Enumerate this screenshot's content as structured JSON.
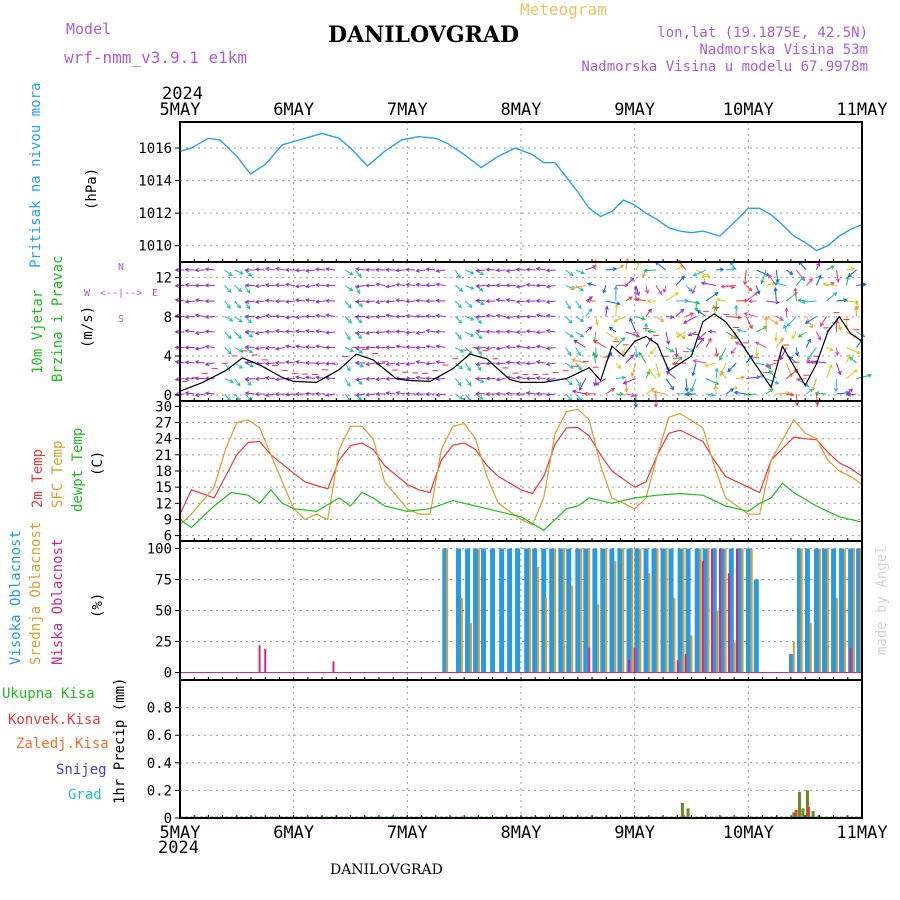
{
  "header": {
    "model_label": "Model",
    "model_name": "wrf-nmm_v3.9.1 e1km",
    "station": "DANILOVGRAD",
    "product": "Meteogram",
    "lonlat": "lon,lat (19.1875E, 42.5N)",
    "elevation": "Nadmorska Visina 53m",
    "model_elevation": "Nadmorska Visina u modelu 67.9978m",
    "credit": "made by Angel",
    "footer_station": "DANILOVGRAD"
  },
  "time_axis": {
    "year": "2024",
    "ticks": [
      "5MAY",
      "6MAY",
      "7MAY",
      "8MAY",
      "9MAY",
      "10MAY",
      "11MAY"
    ]
  },
  "colors": {
    "pressure": "#2aa0e8",
    "wind_speed_label": "#22bb22",
    "temp2m": "#e83a3a",
    "sfc": "#d8a030",
    "dewpt": "#22bb22",
    "high_cloud": "#2a9ae0",
    "mid_cloud": "#d8a030",
    "low_cloud": "#d02888",
    "total_precip": "#22bb22",
    "conv_precip": "#e83a3a",
    "frozen": "#f07030",
    "snow": "#4040e0",
    "hail": "#20c0c0",
    "axes_purple": "#b05ad8"
  },
  "panels": {
    "pressure": {
      "labels": [
        "Pritisak na nivou mora",
        "(hPa)"
      ],
      "yticks": [
        "1016",
        "1014",
        "1012",
        "1010"
      ]
    },
    "wind": {
      "labels": [
        "10m Vjetar",
        "Brzina i Pravac",
        "(m/s)"
      ],
      "yticks": [
        "12",
        "8",
        "4",
        "0"
      ],
      "compass": [
        "W",
        "<--|-->",
        "E",
        "N",
        "S"
      ]
    },
    "temperature": {
      "labels": [
        "2m Temp",
        "SFC Temp",
        "dewpt Temp",
        "(C)"
      ],
      "yticks": [
        "30",
        "27",
        "24",
        "21",
        "18",
        "15",
        "12",
        "9",
        "6"
      ]
    },
    "cloud": {
      "labels": [
        "Visoka Oblacnost",
        "Srednja Oblacnost",
        "Niska Oblacnost",
        "(%)"
      ],
      "yticks": [
        "100",
        "75",
        "50",
        "25",
        "0"
      ]
    },
    "precip": {
      "legend": [
        "Ukupna Kisa",
        "Konvek.Kisa",
        "Zaledj.Kisa",
        "Snijeg",
        "Grad"
      ],
      "ylabel": "1hr Precip (mm)",
      "yticks": [
        "0.8",
        "0.6",
        "0.4",
        "0.2",
        "0"
      ]
    }
  },
  "chart_data": [
    {
      "type": "line",
      "title": "",
      "ylabel": "(hPa)",
      "series": [
        {
          "name": "Pritisak na nivou mora",
          "x": [
            0,
            0.1,
            0.25,
            0.35,
            0.5,
            0.62,
            0.75,
            0.9,
            1.0,
            1.15,
            1.25,
            1.4,
            1.5,
            1.65,
            1.8,
            1.95,
            2.1,
            2.25,
            2.35,
            2.5,
            2.65,
            2.8,
            2.95,
            3.1,
            3.2,
            3.3,
            3.4,
            3.5,
            3.6,
            3.7,
            3.8,
            3.9,
            4.0,
            4.1,
            4.2,
            4.3,
            4.4,
            4.5,
            4.6,
            4.75,
            4.9,
            5.0,
            5.1,
            5.2,
            5.3,
            5.4,
            5.5,
            5.6,
            5.7,
            5.8,
            5.9,
            6.0
          ],
          "y": [
            1015.8,
            1016,
            1016.6,
            1016.5,
            1015.5,
            1014.4,
            1015,
            1016.2,
            1016.4,
            1016.7,
            1016.9,
            1016.6,
            1016,
            1014.9,
            1015.8,
            1016.5,
            1016.7,
            1016.6,
            1016.3,
            1015.6,
            1014.8,
            1015.5,
            1016,
            1015.6,
            1015.1,
            1015.1,
            1014.2,
            1013.3,
            1012.3,
            1011.8,
            1012.1,
            1012.8,
            1012.5,
            1012,
            1011.6,
            1011.1,
            1010.9,
            1010.8,
            1010.9,
            1010.6,
            1011.6,
            1012.3,
            1012.3,
            1011.9,
            1011.3,
            1010.6,
            1010.2,
            1009.7,
            1010,
            1010.6,
            1011,
            1011.3
          ]
        }
      ],
      "ylim": [
        1009,
        1017.6
      ],
      "xlim": [
        0,
        6
      ],
      "grid": true
    },
    {
      "type": "line",
      "title": "",
      "ylabel": "(m/s)",
      "series": [
        {
          "name": "10m Vjetar",
          "x": [
            0,
            0.2,
            0.4,
            0.55,
            0.7,
            0.9,
            1.0,
            1.2,
            1.4,
            1.55,
            1.7,
            1.9,
            2.0,
            2.2,
            2.4,
            2.55,
            2.7,
            2.9,
            3.0,
            3.2,
            3.4,
            3.6,
            3.7,
            3.8,
            3.9,
            4.0,
            4.1,
            4.2,
            4.3,
            4.5,
            4.6,
            4.7,
            4.8,
            4.9,
            5.0,
            5.1,
            5.2,
            5.3,
            5.4,
            5.5,
            5.6,
            5.7,
            5.8,
            5.9,
            6.0
          ],
          "y": [
            0.4,
            1.3,
            2.5,
            3.8,
            3.1,
            1.8,
            1.4,
            1.3,
            2.6,
            4.2,
            3.6,
            1.7,
            1.5,
            1.4,
            2.7,
            4.2,
            3.7,
            1.6,
            1.3,
            1.3,
            1.7,
            2.8,
            1.5,
            5,
            4,
            5.5,
            6,
            5.2,
            2.5,
            4,
            7.5,
            8.3,
            7.5,
            6,
            4.2,
            2.5,
            0.8,
            5,
            3,
            1,
            3.2,
            6.5,
            8,
            6.3,
            5.5
          ]
        }
      ],
      "ylim": [
        -0.6,
        13.6
      ],
      "xlim": [
        0,
        6
      ],
      "grid": true
    },
    {
      "type": "line",
      "title": "",
      "ylabel": "(C)",
      "series": [
        {
          "name": "2m Temp",
          "x": [
            0,
            0.1,
            0.3,
            0.4,
            0.5,
            0.6,
            0.7,
            0.8,
            1.0,
            1.1,
            1.2,
            1.3,
            1.4,
            1.5,
            1.6,
            1.7,
            1.8,
            2.0,
            2.1,
            2.2,
            2.3,
            2.4,
            2.5,
            2.6,
            2.7,
            2.8,
            3.0,
            3.1,
            3.2,
            3.3,
            3.4,
            3.5,
            3.6,
            3.7,
            3.8,
            4.0,
            4.1,
            4.2,
            4.3,
            4.4,
            4.6,
            4.7,
            4.8,
            5.0,
            5.1,
            5.2,
            5.4,
            5.5,
            5.6,
            5.7,
            5.8,
            5.9,
            6.0
          ],
          "y": [
            10,
            14.5,
            13,
            17,
            21,
            23.3,
            23.5,
            21,
            17.6,
            16,
            15.3,
            14.7,
            20,
            22.7,
            23.2,
            22,
            19,
            15.5,
            14.5,
            14,
            20,
            22.8,
            23.2,
            22,
            19,
            17,
            14.5,
            13.8,
            17,
            23,
            26,
            26.1,
            24.5,
            21,
            18,
            15,
            16,
            21,
            25,
            25.6,
            23.5,
            20,
            17,
            15,
            14,
            20,
            24.3,
            24,
            23.8,
            21.5,
            19.5,
            18.5,
            17
          ]
        },
        {
          "name": "SFC Temp",
          "x": [
            0,
            0.1,
            0.3,
            0.4,
            0.5,
            0.6,
            0.7,
            0.8,
            1.0,
            1.1,
            1.2,
            1.3,
            1.4,
            1.5,
            1.6,
            1.7,
            1.8,
            2.0,
            2.1,
            2.2,
            2.3,
            2.4,
            2.5,
            2.6,
            2.7,
            2.8,
            3.0,
            3.1,
            3.2,
            3.3,
            3.4,
            3.5,
            3.6,
            3.7,
            3.8,
            4.0,
            4.1,
            4.2,
            4.3,
            4.4,
            4.6,
            4.7,
            4.8,
            5.0,
            5.1,
            5.2,
            5.4,
            5.5,
            5.6,
            5.7,
            5.8,
            5.9,
            6.0
          ],
          "y": [
            8,
            10,
            15,
            22,
            27,
            27.5,
            26,
            21,
            11,
            9,
            10,
            9,
            22,
            26.3,
            26.3,
            24,
            16,
            11,
            10,
            10,
            22,
            26.3,
            26.8,
            24,
            17,
            12,
            9,
            8,
            13,
            25,
            29,
            29.5,
            27.5,
            19,
            13,
            11,
            13,
            21,
            28,
            28.7,
            26,
            19,
            13,
            10,
            10,
            20,
            27.5,
            25,
            24,
            20,
            18,
            17,
            15.5
          ]
        },
        {
          "name": "dewpt Temp",
          "x": [
            0,
            0.1,
            0.2,
            0.3,
            0.45,
            0.6,
            0.7,
            0.8,
            0.9,
            1.0,
            1.2,
            1.4,
            1.5,
            1.6,
            1.7,
            1.8,
            2.0,
            2.2,
            2.4,
            2.6,
            2.8,
            3.0,
            3.2,
            3.3,
            3.4,
            3.5,
            3.6,
            3.8,
            4.0,
            4.2,
            4.4,
            4.6,
            4.8,
            5.0,
            5.1,
            5.2,
            5.3,
            5.4,
            5.6,
            5.8,
            6.0
          ],
          "y": [
            9,
            7.5,
            9.5,
            11.5,
            14,
            13.5,
            12,
            14.5,
            12,
            11,
            10.5,
            13,
            11.5,
            14,
            13,
            11.5,
            10.5,
            11,
            12.5,
            11.5,
            10.5,
            9.5,
            7,
            9,
            11,
            11.5,
            13,
            12,
            13,
            13.5,
            13.8,
            13.5,
            11.5,
            10.5,
            12,
            13,
            15.7,
            14,
            11.5,
            9.5,
            8.5
          ]
        }
      ],
      "ylim": [
        5,
        31
      ],
      "xlim": [
        0,
        6
      ],
      "grid": true
    },
    {
      "type": "bar",
      "title": "",
      "ylabel": "(%)",
      "series": [
        {
          "name": "Visoka Oblacnost",
          "x": [
            2.33,
            2.45,
            2.53,
            2.6,
            2.67,
            2.75,
            2.83,
            2.9,
            2.97,
            3.05,
            3.12,
            3.2,
            3.27,
            3.35,
            3.42,
            3.5,
            3.57,
            3.65,
            3.72,
            3.8,
            3.87,
            3.95,
            4.02,
            4.1,
            4.17,
            4.25,
            4.32,
            4.4,
            4.47,
            4.55,
            4.62,
            4.7,
            4.77,
            4.85,
            4.92,
            5.0,
            5.07,
            5.38,
            5.45,
            5.52,
            5.6,
            5.67,
            5.75,
            5.82,
            5.9,
            5.97
          ],
          "values": [
            100,
            100,
            100,
            100,
            100,
            100,
            100,
            100,
            100,
            100,
            100,
            100,
            100,
            100,
            100,
            100,
            100,
            100,
            100,
            100,
            100,
            100,
            100,
            100,
            100,
            100,
            100,
            100,
            100,
            100,
            100,
            100,
            100,
            100,
            100,
            100,
            75,
            15,
            100,
            100,
            100,
            100,
            100,
            100,
            100,
            100
          ]
        },
        {
          "name": "Srednja Oblacnost",
          "x": [
            2.35,
            2.48,
            2.56,
            2.63,
            3.08,
            3.15,
            3.22,
            3.3,
            3.38,
            3.45,
            3.53,
            3.6,
            3.68,
            3.75,
            3.83,
            3.9,
            3.98,
            4.05,
            4.13,
            4.2,
            4.28,
            4.35,
            4.43,
            4.5,
            4.58,
            4.65,
            4.73,
            4.8,
            4.88,
            4.95,
            5.03,
            5.4,
            5.47,
            5.55,
            5.63,
            5.7,
            5.78,
            5.85,
            5.93,
            5.99
          ],
          "values": [
            100,
            60,
            40,
            100,
            100,
            85,
            60,
            100,
            100,
            70,
            100,
            100,
            55,
            100,
            90,
            100,
            100,
            100,
            80,
            100,
            100,
            60,
            100,
            30,
            100,
            100,
            50,
            100,
            25,
            100,
            100,
            25,
            100,
            40,
            100,
            100,
            60,
            100,
            100,
            100
          ]
        },
        {
          "name": "Niska Oblacnost",
          "x": [
            0.7,
            0.75,
            1.35,
            3.6,
            3.95,
            4.0,
            4.38,
            4.45,
            4.6,
            4.68,
            4.75,
            4.83,
            4.9,
            5.9
          ],
          "values": [
            22,
            19,
            9,
            20,
            10,
            20,
            10,
            15,
            90,
            100,
            100,
            80,
            100,
            20
          ]
        }
      ],
      "ylim": [
        -6,
        106
      ],
      "xlim": [
        0,
        6
      ],
      "grid": true
    },
    {
      "type": "bar",
      "title": "",
      "ylabel": "1hr Precip (mm)",
      "series": [
        {
          "name": "Ukupna Kisa",
          "x": [
            4.42,
            4.47,
            5.4,
            5.45,
            5.48,
            5.52,
            5.57,
            5.62
          ],
          "values": [
            0.11,
            0.07,
            0.04,
            0.19,
            0.07,
            0.2,
            0.05,
            0.02
          ]
        },
        {
          "name": "Konvek.Kisa",
          "x": [
            4.43,
            5.42,
            5.53
          ],
          "values": [
            0.02,
            0.06,
            0.08
          ]
        },
        {
          "name": "Zaledj.Kisa",
          "x": [],
          "values": []
        },
        {
          "name": "Snijeg",
          "x": [],
          "values": []
        },
        {
          "name": "Grad",
          "x": [],
          "values": []
        }
      ],
      "ylim": [
        0,
        1.0
      ],
      "xlim": [
        0,
        6
      ],
      "grid": true
    }
  ]
}
